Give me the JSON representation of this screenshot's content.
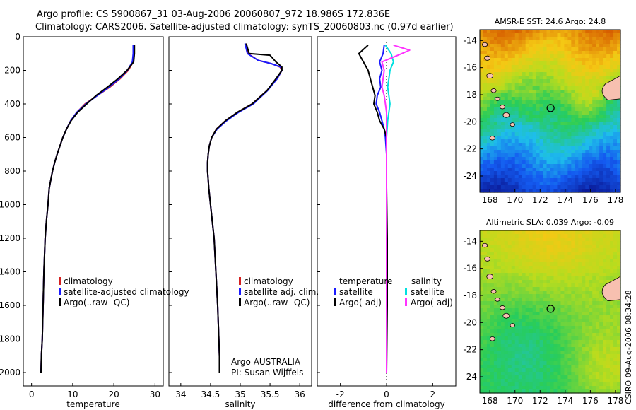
{
  "title": {
    "line1": "Argo profile: CS 5900867_31 03-Aug-2006 20060807_972 18.986S 172.836E",
    "line2": "Climatology: CARS2006. Satellite-adjusted climatology: synTS_20060803.nc (0.97d earlier)"
  },
  "side_label": "CSIRO 09-Aug-2006 08:34:28",
  "colors": {
    "climatology": "#d42020",
    "satellite": "#1a1aff",
    "argo": "#000000",
    "sat_salinity": "#00e0e0",
    "argo_salinity": "#ff33ff"
  },
  "chart_data": [
    {
      "type": "line",
      "xlabel": "temperature",
      "xlim": [
        -2,
        32
      ],
      "ylim": [
        2080,
        0
      ],
      "xticks": [
        "0",
        "10",
        "20",
        "30"
      ],
      "yticks": [
        "0",
        "200",
        "400",
        "600",
        "800",
        "1000",
        "1200",
        "1400",
        "1600",
        "1800",
        "2000"
      ],
      "legend": [
        "climatology",
        "satellite-adjusted climatology",
        "Argo(..raw -QC)"
      ],
      "series": [
        {
          "name": "climatology",
          "color": "#d42020",
          "x": [
            24.9,
            24.9,
            24.7,
            23.5,
            21.5,
            19,
            16,
            13,
            11,
            9.5,
            8.5,
            7.6,
            6.9,
            6.2,
            5.6,
            5.1,
            4.7,
            4.3,
            4,
            3.6,
            3.3,
            3,
            2.8,
            2.6,
            2.4,
            2.3
          ],
          "y": [
            50,
            100,
            150,
            200,
            250,
            300,
            350,
            400,
            450,
            500,
            550,
            600,
            650,
            700,
            750,
            800,
            850,
            900,
            1000,
            1100,
            1200,
            1400,
            1600,
            1800,
            1900,
            2000
          ]
        },
        {
          "name": "satellite-adjusted climatology",
          "color": "#1a1aff",
          "x": [
            24.7,
            24.7,
            24.5,
            23.3,
            21.3,
            18.8,
            16,
            13.2,
            11,
            9.5,
            8.5,
            7.6,
            6.9,
            6.2,
            5.6,
            5.1,
            4.7,
            4.3,
            4,
            3.6,
            3.3,
            3,
            2.8,
            2.6,
            2.4,
            2.3
          ],
          "y": [
            50,
            100,
            150,
            200,
            250,
            300,
            350,
            400,
            450,
            500,
            550,
            600,
            650,
            700,
            750,
            800,
            850,
            900,
            1000,
            1100,
            1200,
            1400,
            1600,
            1800,
            1900,
            2000
          ]
        },
        {
          "name": "Argo(..raw -QC)",
          "color": "#000000",
          "x": [
            25,
            25,
            24.8,
            23.2,
            21,
            18.4,
            15.7,
            13.4,
            11.2,
            9.6,
            8.5,
            7.6,
            6.9,
            6.2,
            5.6,
            5.1,
            4.7,
            4.3,
            4,
            3.6,
            3.3,
            3,
            2.8,
            2.6,
            2.4,
            2.3
          ],
          "y": [
            50,
            100,
            150,
            200,
            250,
            300,
            350,
            400,
            450,
            500,
            550,
            600,
            650,
            700,
            750,
            800,
            850,
            900,
            1000,
            1100,
            1200,
            1400,
            1600,
            1800,
            1900,
            2000
          ]
        }
      ]
    },
    {
      "type": "line",
      "xlabel": "salinity",
      "xlim": [
        33.8,
        36.2
      ],
      "ylim": [
        2080,
        0
      ],
      "xticks": [
        "34",
        "34.5",
        "35",
        "35.5",
        "36"
      ],
      "legend": [
        "climatology",
        "satellite adj. clim.",
        "Argo(..raw -QC)"
      ],
      "annotation": [
        "Argo AUSTRALIA",
        "PI: Susan Wijffels"
      ],
      "series": [
        {
          "name": "climatology",
          "color": "#d42020",
          "x": [
            35.1,
            35.13,
            35.3,
            35.52,
            35.67,
            35.7,
            35.62,
            35.45,
            35.2,
            34.95,
            34.75,
            34.6,
            34.52,
            34.48,
            34.46,
            34.45,
            34.45,
            34.46,
            34.47,
            34.5,
            34.53,
            34.56,
            34.59,
            34.62,
            34.64,
            34.65,
            34.65
          ],
          "y": [
            40,
            100,
            140,
            160,
            180,
            200,
            250,
            320,
            400,
            450,
            500,
            550,
            600,
            650,
            700,
            750,
            800,
            850,
            900,
            1000,
            1100,
            1200,
            1400,
            1600,
            1800,
            1900,
            2000
          ]
        },
        {
          "name": "satellite adj. clim.",
          "color": "#1a1aff",
          "x": [
            35.08,
            35.12,
            35.3,
            35.52,
            35.68,
            35.7,
            35.62,
            35.46,
            35.22,
            34.97,
            34.77,
            34.61,
            34.52,
            34.48,
            34.46,
            34.45,
            34.45,
            34.46,
            34.47,
            34.5,
            34.53,
            34.56,
            34.59,
            34.62,
            34.64,
            34.65,
            34.65
          ],
          "y": [
            40,
            100,
            140,
            160,
            180,
            200,
            250,
            320,
            400,
            450,
            500,
            550,
            600,
            650,
            700,
            750,
            800,
            850,
            900,
            1000,
            1100,
            1200,
            1400,
            1600,
            1800,
            1900,
            2000
          ]
        },
        {
          "name": "Argo(..raw -QC)",
          "color": "#000000",
          "x": [
            35.1,
            35.15,
            35.5,
            35.6,
            35.7,
            35.7,
            35.6,
            35.45,
            35.2,
            34.95,
            34.75,
            34.6,
            34.52,
            34.48,
            34.46,
            34.45,
            34.45,
            34.46,
            34.47,
            34.5,
            34.53,
            34.56,
            34.59,
            34.62,
            34.64,
            34.65,
            34.65
          ],
          "y": [
            40,
            100,
            110,
            150,
            180,
            200,
            250,
            320,
            400,
            450,
            500,
            550,
            600,
            650,
            700,
            750,
            800,
            850,
            900,
            1000,
            1100,
            1200,
            1400,
            1600,
            1800,
            1900,
            2000
          ]
        }
      ]
    },
    {
      "type": "line",
      "xlabel": "difference from climatology",
      "xlim": [
        -3,
        3
      ],
      "ylim": [
        2080,
        0
      ],
      "xticks": [
        "-2",
        "0",
        "2"
      ],
      "legend_headers": [
        "temperature",
        "salinity"
      ],
      "legend": [
        "satellite",
        "Argo(-adj)",
        "satellite",
        "Argo(-adj)"
      ],
      "series": [
        {
          "name": "temperature satellite",
          "color": "#1a1aff",
          "x": [
            -0.1,
            -0.15,
            -0.3,
            -0.2,
            -0.3,
            -0.25,
            -0.4,
            -0.45,
            -0.3,
            -0.2,
            -0.1,
            -0.05,
            0,
            0,
            0,
            0,
            0
          ],
          "y": [
            50,
            100,
            150,
            200,
            250,
            300,
            350,
            400,
            450,
            500,
            550,
            600,
            700,
            900,
            1200,
            1600,
            2000
          ]
        },
        {
          "name": "temperature Argo(-adj)",
          "color": "#000000",
          "x": [
            -0.8,
            -1.2,
            -1.0,
            -0.8,
            -0.7,
            -0.6,
            -0.5,
            -0.55,
            -0.4,
            -0.3,
            -0.1,
            0,
            0,
            0,
            0.03,
            0.03,
            0
          ],
          "y": [
            50,
            100,
            150,
            200,
            250,
            300,
            350,
            400,
            450,
            500,
            550,
            600,
            700,
            900,
            1200,
            1600,
            2000
          ]
        },
        {
          "name": "salinity satellite",
          "color": "#00e0e0",
          "x": [
            -0.05,
            0.2,
            0.3,
            0.15,
            0.1,
            0.05,
            0.1,
            0.15,
            0.1,
            0.05,
            0,
            0,
            0,
            0,
            0,
            0
          ],
          "y": [
            50,
            100,
            150,
            200,
            250,
            300,
            350,
            400,
            450,
            500,
            600,
            700,
            900,
            1200,
            1600,
            2000
          ]
        },
        {
          "name": "salinity Argo(-adj)",
          "color": "#ff33ff",
          "x": [
            0.3,
            1.0,
            0.5,
            -0.2,
            -0.1,
            -0.15,
            -0.2,
            -0.1,
            -0.05,
            0,
            0,
            0,
            0,
            0,
            0,
            0
          ],
          "y": [
            50,
            80,
            110,
            150,
            200,
            250,
            300,
            350,
            400,
            450,
            500,
            600,
            800,
            1200,
            1600,
            2000
          ]
        }
      ]
    },
    {
      "type": "heatmap",
      "title": "AMSR-E SST: 24.6 Argo: 24.8",
      "xlim": [
        167.2,
        178.4
      ],
      "ylim": [
        -25.2,
        -13.2
      ],
      "xticks": [
        "168",
        "170",
        "172",
        "174",
        "176",
        "178"
      ],
      "yticks": [
        "-14",
        "-16",
        "-18",
        "-20",
        "-22",
        "-24"
      ],
      "marker": {
        "lon": 172.836,
        "lat": -18.986
      }
    },
    {
      "type": "heatmap",
      "title": "Altimetric SLA: 0.039 Argo: -0.09",
      "xlim": [
        167.2,
        178.4
      ],
      "ylim": [
        -25.2,
        -13.2
      ],
      "xticks": [
        "168",
        "170",
        "172",
        "174",
        "176",
        "178"
      ],
      "yticks": [
        "-14",
        "-16",
        "-18",
        "-20",
        "-22",
        "-24"
      ],
      "marker": {
        "lon": 172.836,
        "lat": -18.986
      }
    }
  ]
}
